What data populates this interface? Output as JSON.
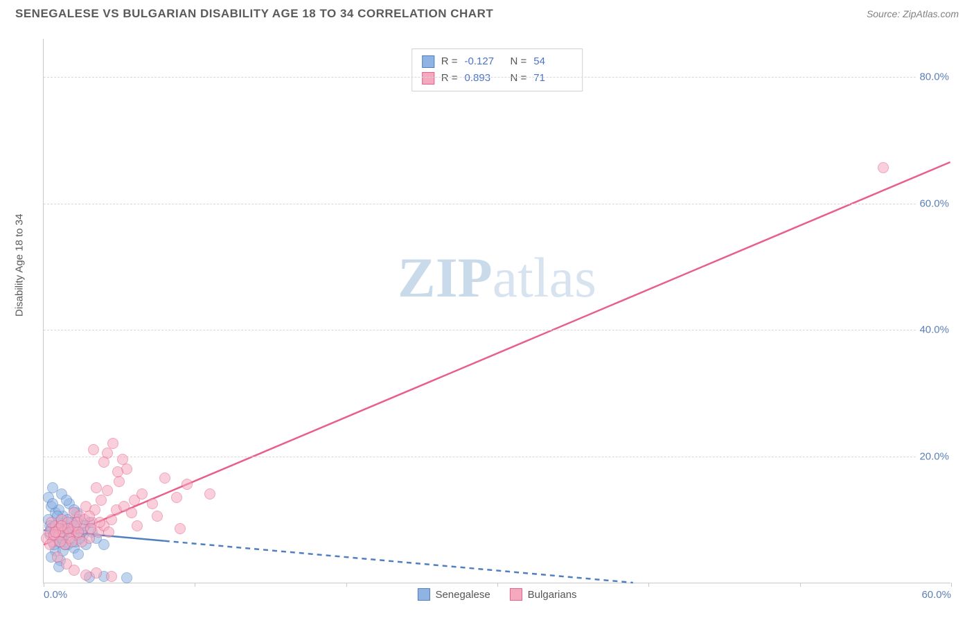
{
  "header": {
    "title": "SENEGALESE VS BULGARIAN DISABILITY AGE 18 TO 34 CORRELATION CHART",
    "source_prefix": "Source: ",
    "source_name": "ZipAtlas.com"
  },
  "chart": {
    "type": "scatter",
    "ylabel": "Disability Age 18 to 34",
    "background_color": "#ffffff",
    "grid_color": "#d7d7d7",
    "axis_color": "#c9c9c9",
    "tick_label_color": "#5b7fb8",
    "label_fontsize": 15,
    "title_fontsize": 17,
    "xlim": [
      0,
      60
    ],
    "ylim": [
      0,
      86
    ],
    "xticks": [
      0,
      10,
      20,
      30,
      40,
      50,
      60
    ],
    "xtick_labels": {
      "0": "0.0%",
      "60": "60.0%"
    },
    "yticks": [
      20,
      40,
      60,
      80
    ],
    "ytick_labels": {
      "20": "20.0%",
      "40": "40.0%",
      "60": "60.0%",
      "80": "80.0%"
    },
    "watermark": {
      "part1": "ZIP",
      "part2": "atlas"
    },
    "marker_radius": 8,
    "marker_opacity": 0.55,
    "series": [
      {
        "name": "Senegalese",
        "fill_color": "#8fb4e3",
        "stroke_color": "#4f7fc0",
        "r_value": "-0.127",
        "n_value": "54",
        "trend": {
          "x1": 0,
          "y1": 8.3,
          "x2": 8,
          "y2": 6.6,
          "solid": true
        },
        "trend_ext": {
          "x1": 8,
          "y1": 6.6,
          "x2": 39,
          "y2": 0,
          "solid": false
        },
        "line_color": "#4f7fc0",
        "points": [
          [
            0.3,
            13.5
          ],
          [
            0.5,
            12.0
          ],
          [
            0.6,
            15.0
          ],
          [
            0.8,
            11.0
          ],
          [
            1.0,
            9.5
          ],
          [
            1.2,
            14.0
          ],
          [
            1.0,
            6.5
          ],
          [
            1.3,
            10.5
          ],
          [
            1.5,
            8.5
          ],
          [
            1.7,
            12.5
          ],
          [
            0.8,
            5.0
          ],
          [
            2.0,
            9.0
          ],
          [
            0.4,
            7.5
          ],
          [
            1.6,
            6.0
          ],
          [
            2.2,
            11.0
          ],
          [
            2.5,
            8.0
          ],
          [
            1.1,
            3.5
          ],
          [
            0.7,
            9.0
          ],
          [
            1.8,
            7.0
          ],
          [
            2.0,
            5.5
          ],
          [
            2.3,
            10.0
          ],
          [
            3.0,
            9.5
          ],
          [
            0.9,
            8.0
          ],
          [
            1.4,
            9.0
          ],
          [
            2.1,
            6.5
          ],
          [
            2.6,
            7.5
          ],
          [
            3.2,
            8.0
          ],
          [
            1.2,
            7.0
          ],
          [
            0.5,
            4.0
          ],
          [
            1.9,
            9.5
          ],
          [
            3.5,
            7.0
          ],
          [
            4.0,
            6.0
          ],
          [
            3.0,
            0.9
          ],
          [
            0.3,
            10.0
          ],
          [
            1.0,
            11.5
          ],
          [
            1.6,
            10.0
          ],
          [
            2.8,
            6.0
          ],
          [
            0.7,
            6.0
          ],
          [
            1.3,
            5.0
          ],
          [
            4.0,
            1.0
          ],
          [
            5.5,
            0.8
          ],
          [
            1.0,
            2.5
          ],
          [
            2.3,
            4.5
          ],
          [
            2.0,
            11.5
          ],
          [
            0.6,
            12.5
          ],
          [
            1.5,
            13.0
          ],
          [
            0.4,
            9.0
          ],
          [
            2.7,
            9.0
          ],
          [
            1.1,
            8.5
          ],
          [
            2.4,
            7.0
          ],
          [
            0.9,
            10.5
          ],
          [
            1.7,
            8.0
          ],
          [
            0.5,
            8.5
          ],
          [
            1.4,
            6.0
          ]
        ]
      },
      {
        "name": "Bulgarians",
        "fill_color": "#f4a9bf",
        "stroke_color": "#e85f8a",
        "r_value": "0.893",
        "n_value": "71",
        "trend": {
          "x1": 0,
          "y1": 6.0,
          "x2": 60,
          "y2": 66.5,
          "solid": true
        },
        "line_color": "#e85f8a",
        "points": [
          [
            0.2,
            7.0
          ],
          [
            0.4,
            8.0
          ],
          [
            0.6,
            6.5
          ],
          [
            0.8,
            9.0
          ],
          [
            1.0,
            7.5
          ],
          [
            1.2,
            10.0
          ],
          [
            1.4,
            6.0
          ],
          [
            1.0,
            8.5
          ],
          [
            1.6,
            9.5
          ],
          [
            1.8,
            8.0
          ],
          [
            2.0,
            11.0
          ],
          [
            2.2,
            7.5
          ],
          [
            2.4,
            10.5
          ],
          [
            2.0,
            9.0
          ],
          [
            2.6,
            8.5
          ],
          [
            2.8,
            12.0
          ],
          [
            3.0,
            7.0
          ],
          [
            3.2,
            9.5
          ],
          [
            2.5,
            6.5
          ],
          [
            3.4,
            11.5
          ],
          [
            3.6,
            8.0
          ],
          [
            3.8,
            13.0
          ],
          [
            4.0,
            9.0
          ],
          [
            4.2,
            14.5
          ],
          [
            4.5,
            10.0
          ],
          [
            3.5,
            15.0
          ],
          [
            4.8,
            11.5
          ],
          [
            5.0,
            16.0
          ],
          [
            5.3,
            12.0
          ],
          [
            5.5,
            18.0
          ],
          [
            4.2,
            20.5
          ],
          [
            4.6,
            22.0
          ],
          [
            4.0,
            19.0
          ],
          [
            6.0,
            13.0
          ],
          [
            6.5,
            14.0
          ],
          [
            7.2,
            12.5
          ],
          [
            8.0,
            16.5
          ],
          [
            8.8,
            13.5
          ],
          [
            9.5,
            15.5
          ],
          [
            11.0,
            14.0
          ],
          [
            7.5,
            10.5
          ],
          [
            6.2,
            9.0
          ],
          [
            9.0,
            8.5
          ],
          [
            1.5,
            3.0
          ],
          [
            2.0,
            2.0
          ],
          [
            2.8,
            1.2
          ],
          [
            3.5,
            1.5
          ],
          [
            4.5,
            1.0
          ],
          [
            0.9,
            4.0
          ],
          [
            1.3,
            8.0
          ],
          [
            1.7,
            7.0
          ],
          [
            0.5,
            9.5
          ],
          [
            0.7,
            7.5
          ],
          [
            1.1,
            6.5
          ],
          [
            1.6,
            8.5
          ],
          [
            2.2,
            9.5
          ],
          [
            2.7,
            10.0
          ],
          [
            3.1,
            8.5
          ],
          [
            3.7,
            9.5
          ],
          [
            4.3,
            8.0
          ],
          [
            3.3,
            21.0
          ],
          [
            5.2,
            19.5
          ],
          [
            4.9,
            17.5
          ],
          [
            2.3,
            8.0
          ],
          [
            1.9,
            6.5
          ],
          [
            0.4,
            6.0
          ],
          [
            0.8,
            8.0
          ],
          [
            1.2,
            9.0
          ],
          [
            3.0,
            10.5
          ],
          [
            5.8,
            11.0
          ],
          [
            55.5,
            65.5
          ]
        ]
      }
    ],
    "bottom_legend": [
      {
        "swatch_fill": "#8fb4e3",
        "swatch_stroke": "#4f7fc0",
        "label": "Senegalese"
      },
      {
        "swatch_fill": "#f4a9bf",
        "swatch_stroke": "#e85f8a",
        "label": "Bulgarians"
      }
    ]
  }
}
